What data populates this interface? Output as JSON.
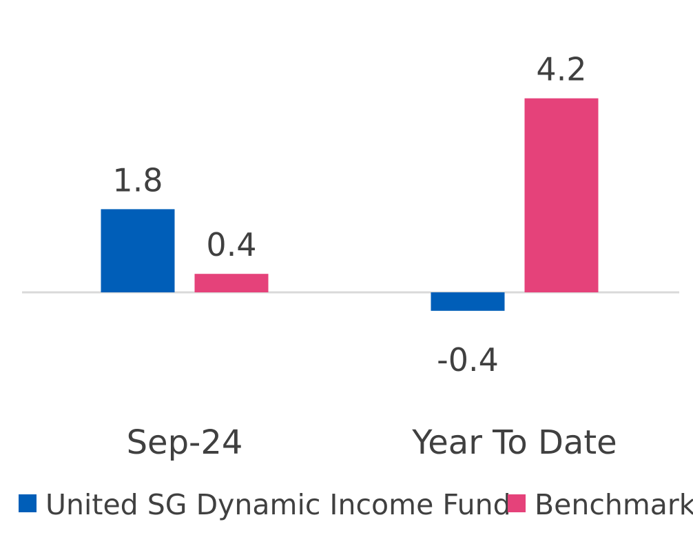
{
  "chart_data": {
    "type": "bar",
    "categories": [
      "Sep-24",
      "Year To Date"
    ],
    "series": [
      {
        "name": "United SG Dynamic Income Fund",
        "values": [
          1.8,
          -0.4
        ],
        "color": "#005EB8"
      },
      {
        "name": "Benchmark",
        "values": [
          0.4,
          4.2
        ],
        "color": "#E5427A"
      }
    ],
    "data_labels": [
      "1.8",
      "-0.4",
      "0.4",
      "4.2"
    ],
    "title": "",
    "xlabel": "",
    "ylabel": "",
    "ylim": [
      -0.8,
      5.0
    ],
    "grid": false,
    "legend_position": "bottom",
    "axis_color": "#D9D9D9",
    "text_color": "#404040"
  }
}
